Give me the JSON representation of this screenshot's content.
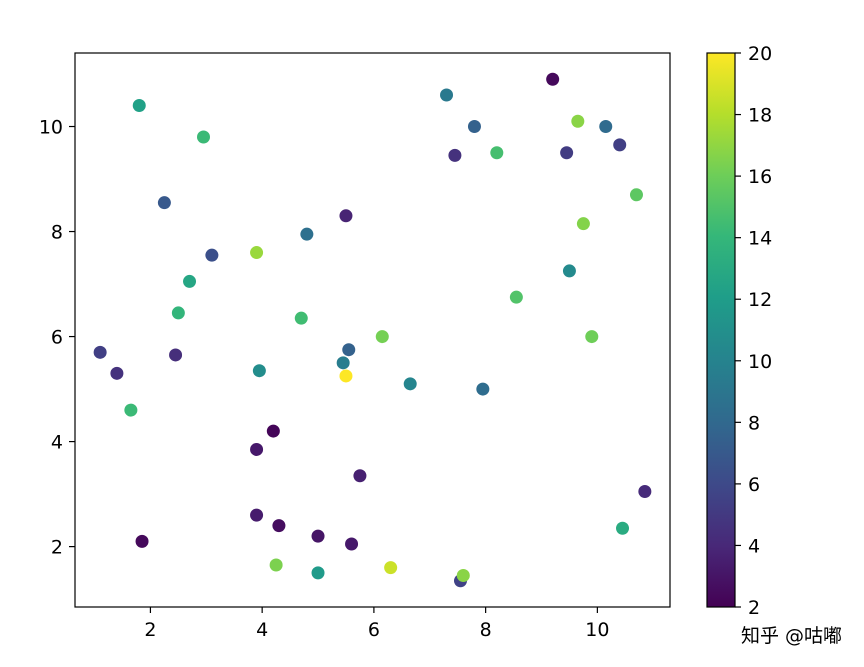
{
  "chart_data": {
    "type": "scatter",
    "title": "",
    "xlabel": "",
    "ylabel": "",
    "xlim": [
      0.65,
      11.3
    ],
    "ylim": [
      0.85,
      11.4
    ],
    "xticks": [
      2,
      4,
      6,
      8,
      10
    ],
    "yticks": [
      2,
      4,
      6,
      8,
      10
    ],
    "grid": false,
    "colorbar": {
      "colormap": "viridis",
      "range": [
        2,
        20
      ],
      "ticks": [
        2,
        4,
        6,
        8,
        10,
        12,
        14,
        16,
        18,
        20
      ]
    },
    "points": [
      {
        "x": 9.2,
        "y": 10.9,
        "c": 2.4
      },
      {
        "x": 1.8,
        "y": 10.4,
        "c": 12.2
      },
      {
        "x": 7.3,
        "y": 10.6,
        "c": 9.3
      },
      {
        "x": 7.8,
        "y": 10.0,
        "c": 7.6
      },
      {
        "x": 10.15,
        "y": 10.0,
        "c": 8.2
      },
      {
        "x": 9.65,
        "y": 10.1,
        "c": 16.8
      },
      {
        "x": 2.95,
        "y": 9.8,
        "c": 14.2
      },
      {
        "x": 7.45,
        "y": 9.45,
        "c": 4.6
      },
      {
        "x": 8.2,
        "y": 9.5,
        "c": 14.6
      },
      {
        "x": 9.45,
        "y": 9.5,
        "c": 5.2
      },
      {
        "x": 10.4,
        "y": 9.65,
        "c": 5.4
      },
      {
        "x": 10.7,
        "y": 8.7,
        "c": 15.4
      },
      {
        "x": 2.25,
        "y": 8.55,
        "c": 7.0
      },
      {
        "x": 5.5,
        "y": 8.3,
        "c": 3.8
      },
      {
        "x": 9.75,
        "y": 8.15,
        "c": 16.6
      },
      {
        "x": 4.8,
        "y": 7.95,
        "c": 8.6
      },
      {
        "x": 3.9,
        "y": 7.6,
        "c": 17.2
      },
      {
        "x": 3.1,
        "y": 7.55,
        "c": 6.4
      },
      {
        "x": 9.5,
        "y": 7.25,
        "c": 10.6
      },
      {
        "x": 2.7,
        "y": 7.05,
        "c": 12.6
      },
      {
        "x": 8.55,
        "y": 6.75,
        "c": 15.0
      },
      {
        "x": 2.5,
        "y": 6.45,
        "c": 13.8
      },
      {
        "x": 4.7,
        "y": 6.35,
        "c": 14.4
      },
      {
        "x": 6.15,
        "y": 6.0,
        "c": 16.2
      },
      {
        "x": 9.9,
        "y": 6.0,
        "c": 16.0
      },
      {
        "x": 1.1,
        "y": 5.7,
        "c": 5.4
      },
      {
        "x": 2.45,
        "y": 5.65,
        "c": 4.4
      },
      {
        "x": 5.55,
        "y": 5.75,
        "c": 7.6
      },
      {
        "x": 5.45,
        "y": 5.5,
        "c": 9.6
      },
      {
        "x": 5.5,
        "y": 5.25,
        "c": 20.0
      },
      {
        "x": 1.4,
        "y": 5.3,
        "c": 4.6
      },
      {
        "x": 3.95,
        "y": 5.35,
        "c": 10.8
      },
      {
        "x": 6.65,
        "y": 5.1,
        "c": 10.2
      },
      {
        "x": 7.95,
        "y": 5.0,
        "c": 8.4
      },
      {
        "x": 1.65,
        "y": 4.6,
        "c": 14.2
      },
      {
        "x": 4.2,
        "y": 4.2,
        "c": 2.2
      },
      {
        "x": 3.9,
        "y": 3.85,
        "c": 3.2
      },
      {
        "x": 5.75,
        "y": 3.35,
        "c": 3.6
      },
      {
        "x": 10.85,
        "y": 3.05,
        "c": 4.2
      },
      {
        "x": 3.9,
        "y": 2.6,
        "c": 3.4
      },
      {
        "x": 4.3,
        "y": 2.4,
        "c": 2.6
      },
      {
        "x": 10.45,
        "y": 2.35,
        "c": 13.0
      },
      {
        "x": 5.0,
        "y": 2.2,
        "c": 3.0
      },
      {
        "x": 1.85,
        "y": 2.1,
        "c": 2.4
      },
      {
        "x": 5.6,
        "y": 2.05,
        "c": 3.2
      },
      {
        "x": 4.25,
        "y": 1.65,
        "c": 16.4
      },
      {
        "x": 6.3,
        "y": 1.6,
        "c": 18.6
      },
      {
        "x": 5.0,
        "y": 1.5,
        "c": 11.8
      },
      {
        "x": 7.55,
        "y": 1.35,
        "c": 5.6
      },
      {
        "x": 7.6,
        "y": 1.45,
        "c": 16.8
      }
    ]
  },
  "watermark": "知乎 @咕嘟"
}
